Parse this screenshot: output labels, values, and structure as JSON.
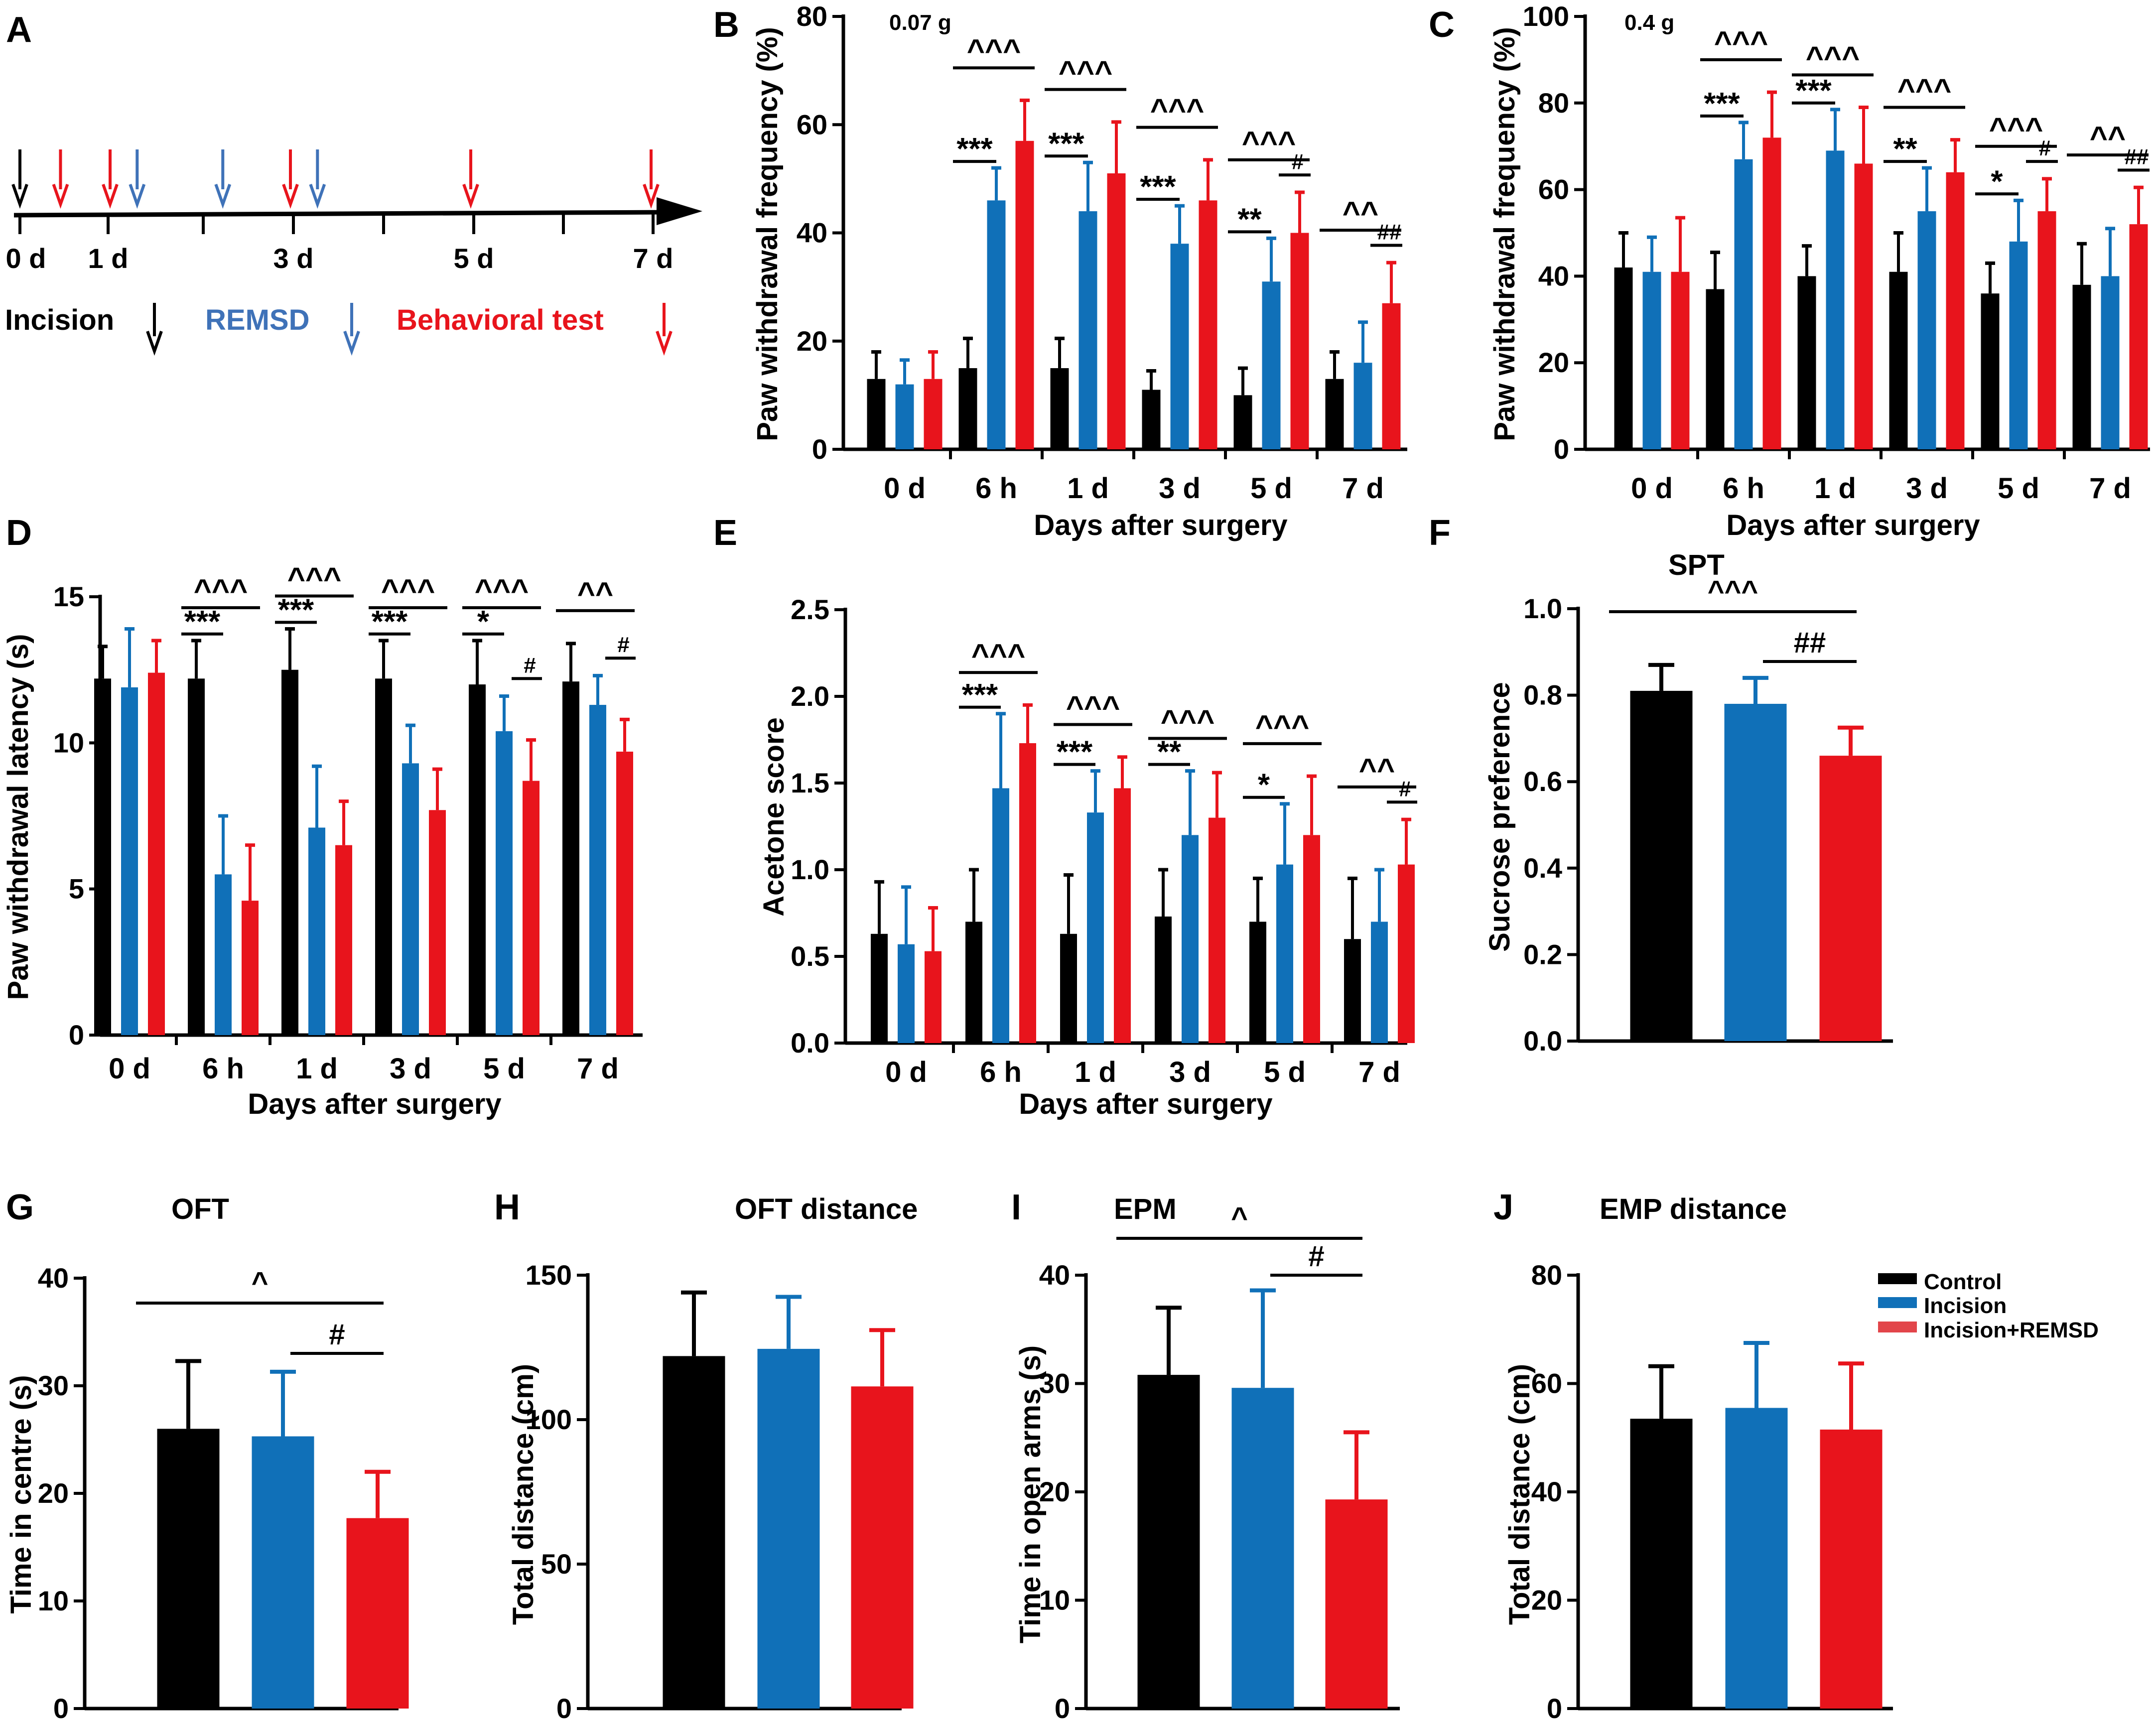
{
  "colors": {
    "control": "#000000",
    "incision": "#1070b8",
    "remsd": "#e8141c",
    "timeline_black": "#000000",
    "timeline_blue": "#3f72b8",
    "timeline_red": "#e8141c"
  },
  "legend": {
    "items": [
      "Control",
      "Incision",
      "Incision+REMSD"
    ]
  },
  "panel_a": {
    "letter": "A",
    "ticks": [
      "0 d",
      "1 d",
      "3 d",
      "5 d",
      "7 d"
    ],
    "labels": {
      "incision": "Incision",
      "remsd": "REMSD",
      "behavioral": "Behavioral test"
    },
    "arrows": [
      {
        "day": 0,
        "kind": "incision"
      },
      {
        "day": 0.45,
        "kind": "behavioral"
      },
      {
        "day": 1,
        "kind": "behavioral"
      },
      {
        "day": 1.3,
        "kind": "remsd"
      },
      {
        "day": 2.25,
        "kind": "remsd"
      },
      {
        "day": 3,
        "kind": "behavioral"
      },
      {
        "day": 3.3,
        "kind": "remsd"
      },
      {
        "day": 5,
        "kind": "behavioral"
      },
      {
        "day": 7,
        "kind": "behavioral"
      }
    ]
  },
  "chart_data": [
    {
      "id": "B",
      "letter": "B",
      "type": "bar",
      "title": "0.07 g",
      "xlabel": "Days after surgery",
      "ylabel": "Paw withdrawal frequency (%)",
      "ylim": [
        0,
        80
      ],
      "yticks": [
        0,
        20,
        40,
        60,
        80
      ],
      "ytick_labels": [
        "0",
        "20",
        "40",
        "60",
        "80"
      ],
      "categories": [
        "0 d",
        "6 h",
        "1 d",
        "3 d",
        "5 d",
        "7 d"
      ],
      "series": [
        {
          "name": "Control",
          "values": [
            13,
            15,
            15,
            11,
            10,
            13
          ],
          "errors": [
            5,
            5.5,
            5.5,
            3.5,
            5,
            5
          ]
        },
        {
          "name": "Incision",
          "values": [
            12,
            46,
            44,
            38,
            31,
            16
          ],
          "errors": [
            4.5,
            6,
            9,
            7,
            8,
            7.5
          ]
        },
        {
          "name": "Incision+REMSD",
          "values": [
            13,
            57,
            51,
            46,
            40,
            27
          ],
          "errors": [
            5,
            7.5,
            9.5,
            7.5,
            7.5,
            7.5
          ]
        }
      ],
      "annotations": [
        {
          "cat": 1,
          "pair": "CR",
          "text": "^^^"
        },
        {
          "cat": 1,
          "pair": "CI",
          "text": "***"
        },
        {
          "cat": 2,
          "pair": "CR",
          "text": "^^^"
        },
        {
          "cat": 2,
          "pair": "CI",
          "text": "***"
        },
        {
          "cat": 3,
          "pair": "CR",
          "text": "^^^"
        },
        {
          "cat": 3,
          "pair": "CI",
          "text": "***"
        },
        {
          "cat": 4,
          "pair": "CR",
          "text": "^^^"
        },
        {
          "cat": 4,
          "pair": "CI",
          "text": "**"
        },
        {
          "cat": 4,
          "pair": "IR",
          "text": "#"
        },
        {
          "cat": 5,
          "pair": "CR",
          "text": "^^"
        },
        {
          "cat": 5,
          "pair": "IR",
          "text": "##"
        }
      ]
    },
    {
      "id": "C",
      "letter": "C",
      "type": "bar",
      "title": "0.4 g",
      "xlabel": "Days after surgery",
      "ylabel": "Paw withdrawal frequency (%)",
      "ylim": [
        0,
        100
      ],
      "yticks": [
        0,
        20,
        40,
        60,
        80,
        100
      ],
      "ytick_labels": [
        "0",
        "20",
        "40",
        "60",
        "80",
        "100"
      ],
      "categories": [
        "0 d",
        "6 h",
        "1 d",
        "3 d",
        "5 d",
        "7 d"
      ],
      "series": [
        {
          "name": "Control",
          "values": [
            42,
            37,
            40,
            41,
            36,
            38
          ],
          "errors": [
            8,
            8.5,
            7,
            9,
            7,
            9.5
          ]
        },
        {
          "name": "Incision",
          "values": [
            41,
            67,
            69,
            55,
            48,
            40
          ],
          "errors": [
            8,
            8.5,
            9.5,
            10,
            9.5,
            11
          ]
        },
        {
          "name": "Incision+REMSD",
          "values": [
            41,
            72,
            66,
            64,
            55,
            52
          ],
          "errors": [
            12.5,
            10.5,
            13,
            7.5,
            7.5,
            8.5
          ]
        }
      ],
      "annotations": [
        {
          "cat": 1,
          "pair": "CR",
          "text": "^^^"
        },
        {
          "cat": 1,
          "pair": "CI",
          "text": "***"
        },
        {
          "cat": 2,
          "pair": "CR",
          "text": "^^^"
        },
        {
          "cat": 2,
          "pair": "CI",
          "text": "***"
        },
        {
          "cat": 3,
          "pair": "CR",
          "text": "^^^"
        },
        {
          "cat": 3,
          "pair": "CI",
          "text": "**"
        },
        {
          "cat": 4,
          "pair": "CR",
          "text": "^^^"
        },
        {
          "cat": 4,
          "pair": "CI",
          "text": "*"
        },
        {
          "cat": 4,
          "pair": "IR",
          "text": "#"
        },
        {
          "cat": 5,
          "pair": "CR",
          "text": "^^"
        },
        {
          "cat": 5,
          "pair": "IR",
          "text": "##"
        }
      ]
    },
    {
      "id": "D",
      "letter": "D",
      "type": "bar",
      "title": "",
      "xlabel": "Days after surgery",
      "ylabel": "Paw withdrawal latency (s)",
      "ylim": [
        0,
        15
      ],
      "yticks": [
        0,
        5,
        10,
        15
      ],
      "ytick_labels": [
        "0",
        "5",
        "10",
        "15"
      ],
      "categories": [
        "0 d",
        "6 h",
        "1 d",
        "3 d",
        "5 d",
        "7 d"
      ],
      "series": [
        {
          "name": "Control",
          "values": [
            12.2,
            12.2,
            12.5,
            12.2,
            12.0,
            12.1
          ],
          "errors": [
            1.1,
            1.3,
            1.4,
            1.3,
            1.5,
            1.3
          ]
        },
        {
          "name": "Incision",
          "values": [
            11.9,
            5.5,
            7.1,
            9.3,
            10.4,
            11.3
          ],
          "errors": [
            2.0,
            2.0,
            2.1,
            1.3,
            1.2,
            1.0
          ]
        },
        {
          "name": "Incision+REMSD",
          "values": [
            12.4,
            4.6,
            6.5,
            7.7,
            8.7,
            9.7
          ],
          "errors": [
            1.1,
            1.9,
            1.5,
            1.4,
            1.4,
            1.1
          ]
        }
      ],
      "annotations": [
        {
          "cat": 1,
          "pair": "CR",
          "text": "^^^"
        },
        {
          "cat": 1,
          "pair": "CI",
          "text": "***"
        },
        {
          "cat": 2,
          "pair": "CR",
          "text": "^^^"
        },
        {
          "cat": 2,
          "pair": "CI",
          "text": "***"
        },
        {
          "cat": 3,
          "pair": "CR",
          "text": "^^^"
        },
        {
          "cat": 3,
          "pair": "CI",
          "text": "***"
        },
        {
          "cat": 4,
          "pair": "CR",
          "text": "^^^"
        },
        {
          "cat": 4,
          "pair": "CI",
          "text": "*"
        },
        {
          "cat": 4,
          "pair": "IR",
          "text": "#"
        },
        {
          "cat": 5,
          "pair": "CR",
          "text": "^^"
        },
        {
          "cat": 5,
          "pair": "IR",
          "text": "#"
        }
      ]
    },
    {
      "id": "E",
      "letter": "E",
      "type": "bar",
      "title": "",
      "xlabel": "Days after surgery",
      "ylabel": "Acetone score",
      "ylim": [
        0,
        2.5
      ],
      "yticks": [
        0,
        0.5,
        1.0,
        1.5,
        2.0,
        2.5
      ],
      "ytick_labels": [
        "0.0",
        "0.5",
        "1.0",
        "1.5",
        "2.0",
        "2.5"
      ],
      "categories": [
        "0 d",
        "6 h",
        "1 d",
        "3 d",
        "5 d",
        "7 d"
      ],
      "series": [
        {
          "name": "Control",
          "values": [
            0.63,
            0.7,
            0.63,
            0.73,
            0.7,
            0.6
          ],
          "errors": [
            0.3,
            0.3,
            0.34,
            0.27,
            0.25,
            0.35
          ]
        },
        {
          "name": "Incision",
          "values": [
            0.57,
            1.47,
            1.33,
            1.2,
            1.03,
            0.7
          ],
          "errors": [
            0.33,
            0.43,
            0.24,
            0.37,
            0.35,
            0.3
          ]
        },
        {
          "name": "Incision+REMSD",
          "values": [
            0.53,
            1.73,
            1.47,
            1.3,
            1.2,
            1.03
          ],
          "errors": [
            0.25,
            0.22,
            0.18,
            0.26,
            0.34,
            0.26
          ]
        }
      ],
      "annotations": [
        {
          "cat": 1,
          "pair": "CR",
          "text": "^^^"
        },
        {
          "cat": 1,
          "pair": "CI",
          "text": "***"
        },
        {
          "cat": 2,
          "pair": "CR",
          "text": "^^^"
        },
        {
          "cat": 2,
          "pair": "CI",
          "text": "***"
        },
        {
          "cat": 3,
          "pair": "CR",
          "text": "^^^"
        },
        {
          "cat": 3,
          "pair": "CI",
          "text": "**"
        },
        {
          "cat": 4,
          "pair": "CR",
          "text": "^^^"
        },
        {
          "cat": 4,
          "pair": "CI",
          "text": "*"
        },
        {
          "cat": 5,
          "pair": "CR",
          "text": "^^"
        },
        {
          "cat": 5,
          "pair": "IR",
          "text": "#"
        }
      ]
    },
    {
      "id": "F",
      "letter": "F",
      "type": "bar",
      "title": "SPT",
      "xlabel": "",
      "ylabel": "Sucrose preference",
      "ylim": [
        0,
        1.0
      ],
      "yticks": [
        0,
        0.2,
        0.4,
        0.6,
        0.8,
        1.0
      ],
      "ytick_labels": [
        "0.0",
        "0.2",
        "0.4",
        "0.6",
        "0.8",
        "1.0"
      ],
      "categories": [
        "Control",
        "Incision",
        "Incision+REMSD"
      ],
      "values": [
        0.81,
        0.78,
        0.66
      ],
      "errors": [
        0.06,
        0.06,
        0.065
      ],
      "annotations": [
        {
          "pair": "CR",
          "text": "^^^"
        },
        {
          "pair": "IR",
          "text": "##"
        }
      ]
    },
    {
      "id": "G",
      "letter": "G",
      "type": "bar",
      "title": "OFT",
      "xlabel": "",
      "ylabel": "Time in centre (s)",
      "ylim": [
        0,
        40
      ],
      "yticks": [
        0,
        10,
        20,
        30,
        40
      ],
      "ytick_labels": [
        "0",
        "10",
        "20",
        "30",
        "40"
      ],
      "categories": [
        "Control",
        "Incision",
        "Incision+REMSD"
      ],
      "values": [
        26,
        25.3,
        17.7
      ],
      "errors": [
        6.3,
        6,
        4.3
      ],
      "annotations": [
        {
          "pair": "CR",
          "text": "^"
        },
        {
          "pair": "IR",
          "text": "#"
        }
      ]
    },
    {
      "id": "H",
      "letter": "H",
      "type": "bar",
      "title": "OFT distance",
      "xlabel": "",
      "ylabel": "Total distance (cm)",
      "ylim": [
        0,
        150
      ],
      "yticks": [
        0,
        50,
        100,
        150
      ],
      "ytick_labels": [
        "0",
        "50",
        "100",
        "150"
      ],
      "categories": [
        "Control",
        "Incision",
        "Incision+REMSD"
      ],
      "values": [
        122,
        124.5,
        111.5
      ],
      "errors": [
        22,
        18,
        19.5
      ],
      "annotations": []
    },
    {
      "id": "I",
      "letter": "I",
      "type": "bar",
      "title": "EPM",
      "xlabel": "",
      "ylabel": "Time in open arms (s)",
      "ylim": [
        0,
        40
      ],
      "yticks": [
        0,
        10,
        20,
        30,
        40
      ],
      "ytick_labels": [
        "0",
        "10",
        "20",
        "30",
        "40"
      ],
      "categories": [
        "Control",
        "Incision",
        "Incision+REMSD"
      ],
      "values": [
        30.8,
        29.6,
        19.3
      ],
      "errors": [
        6.2,
        9,
        6.2
      ],
      "annotations": [
        {
          "pair": "CR",
          "text": "^"
        },
        {
          "pair": "IR",
          "text": "#"
        }
      ]
    },
    {
      "id": "J",
      "letter": "J",
      "type": "bar",
      "title": "EMP distance",
      "xlabel": "",
      "ylabel": "Total distance (cm)",
      "ylim": [
        0,
        80
      ],
      "yticks": [
        0,
        20,
        40,
        60,
        80
      ],
      "ytick_labels": [
        "0",
        "20",
        "40",
        "60",
        "80"
      ],
      "categories": [
        "Control",
        "Incision",
        "Incision+REMSD"
      ],
      "values": [
        53.5,
        55.5,
        51.5
      ],
      "errors": [
        9.7,
        12,
        12.2
      ],
      "annotations": []
    }
  ]
}
